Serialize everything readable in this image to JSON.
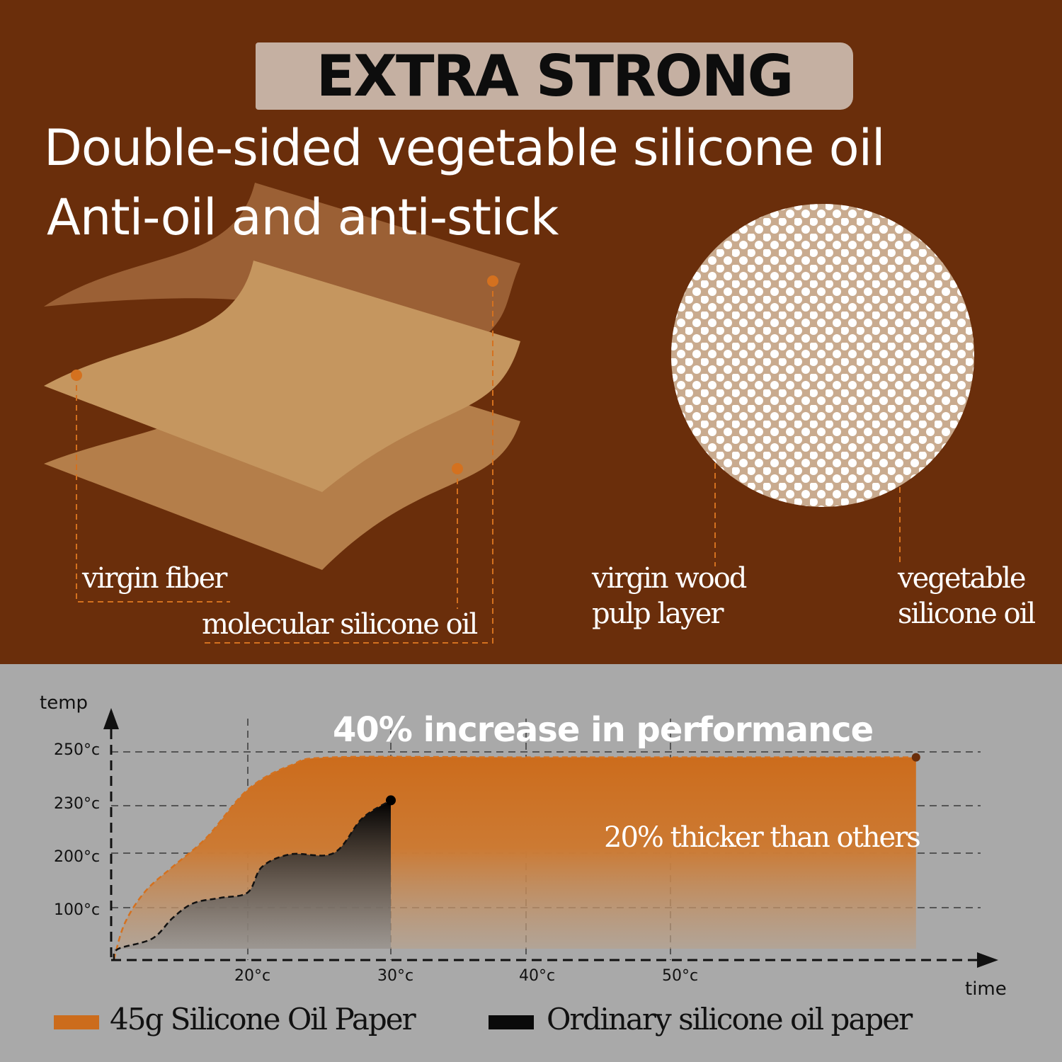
{
  "header": {
    "banner": "EXTRA STRONG",
    "headline_1": "Double-sided vegetable silicone oil",
    "headline_2": "Anti-oil and anti-stick"
  },
  "layers": {
    "label_virgin_fiber": "virgin fiber",
    "label_molecular_oil": "molecular silicone oil",
    "label_wood_pulp_1": "virgin wood",
    "label_wood_pulp_2": "pulp layer",
    "label_veg_oil_1": "vegetable",
    "label_veg_oil_2": "silicone oil"
  },
  "colors": {
    "background_top": "#6a2e0b",
    "background_bottom": "#a9a9a9",
    "accent_orange": "#cc6c1c",
    "black_series": "#0a0a0a"
  },
  "chart_data": {
    "type": "area",
    "title": "40% increase in performance",
    "annotation": "20% thicker than others",
    "xlabel": "time",
    "ylabel": "temp",
    "x_ticks": [
      "20°c",
      "30°c",
      "40°c",
      "50°c"
    ],
    "x_tick_values": [
      20,
      30,
      40,
      50
    ],
    "y_ticks": [
      "250°c",
      "230°c",
      "200°c",
      "100°c"
    ],
    "y_tick_values": [
      250,
      230,
      200,
      100
    ],
    "grid": true,
    "legend_placement": "bottom",
    "series": [
      {
        "name": "45g Silicone Oil Paper",
        "color": "#cc6c1c",
        "x": [
          10.2,
          11,
          12.5,
          14.5,
          17,
          20,
          23,
          26,
          40,
          67
        ],
        "y": [
          0,
          70,
          130,
          175,
          210,
          236,
          245,
          248,
          248,
          248
        ]
      },
      {
        "name": "Ordinary silicone oil paper",
        "color": "#0a0a0a",
        "x": [
          10.2,
          10.5,
          13,
          14.5,
          16,
          18,
          20,
          21,
          23,
          26,
          28,
          30
        ],
        "y": [
          0,
          20,
          40,
          80,
          108,
          118,
          128,
          175,
          198,
          200,
          222,
          232
        ]
      }
    ]
  }
}
